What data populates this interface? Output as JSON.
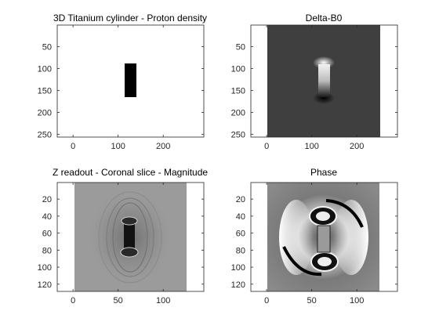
{
  "chart_data": [
    {
      "type": "heatmap",
      "title": "3D Titanium cylinder - Proton density",
      "xticks": [
        0,
        100,
        200
      ],
      "yticks": [
        50,
        100,
        150,
        200,
        250
      ],
      "xlim": [
        -35,
        290
      ],
      "ylim": [
        0.5,
        256.5
      ],
      "image_extent": {
        "x": [
          -35,
          290
        ],
        "y": [
          0.5,
          256.5
        ]
      },
      "image_fill": "#ffffff",
      "features": [
        {
          "kind": "rectangle",
          "color": "#000000",
          "x": [
            116,
            142
          ],
          "y": [
            89,
            164
          ]
        }
      ],
      "grid": false
    },
    {
      "type": "heatmap",
      "title": "Delta-B0",
      "xticks": [
        0,
        100,
        200
      ],
      "yticks": [
        50,
        100,
        150,
        200,
        250
      ],
      "xlim": [
        -35,
        290
      ],
      "ylim": [
        0.5,
        256.5
      ],
      "image_extent": {
        "x": [
          0.5,
          256.5
        ],
        "y": [
          0.5,
          256.5
        ]
      },
      "image_fill": "#3f3f3f",
      "features": [
        {
          "kind": "gradient-rectangle",
          "x": [
            116,
            142
          ],
          "y": [
            89,
            164
          ],
          "colors": [
            "#f2f2f2",
            "#bdbdbd",
            "#1a1a1a"
          ]
        },
        {
          "kind": "glow",
          "color": "#ffffff",
          "x": 129,
          "y": 86
        },
        {
          "kind": "glow",
          "color": "#000000",
          "x": 129,
          "y": 166
        }
      ],
      "grid": false
    },
    {
      "type": "heatmap",
      "title": "Z readout - Coronal slice - Magnitude",
      "xticks": [
        0,
        50,
        100
      ],
      "yticks": [
        20,
        40,
        60,
        80,
        100,
        120
      ],
      "xlim": [
        -17.5,
        145
      ],
      "ylim": [
        0.5,
        128.5
      ],
      "image_extent": {
        "x": [
          0.5,
          128.5
        ],
        "y": [
          0.5,
          128.5
        ]
      },
      "image_fill": "#9b9b9b",
      "features": [
        {
          "kind": "rectangle",
          "color": "#121212",
          "x": [
            58,
            72
          ],
          "y": [
            45,
            88
          ]
        },
        {
          "kind": "ringing",
          "color": "#6a6a6a",
          "x": 65,
          "y": 66
        }
      ],
      "grid": false
    },
    {
      "type": "heatmap",
      "title": "Phase",
      "xticks": [
        0,
        50,
        100
      ],
      "yticks": [
        20,
        40,
        60,
        80,
        100,
        120
      ],
      "xlim": [
        -17.5,
        145
      ],
      "ylim": [
        0.5,
        128.5
      ],
      "image_extent": {
        "x": [
          0.5,
          128.5
        ],
        "y": [
          0.5,
          128.5
        ]
      },
      "image_fill": "#7f7f7f",
      "features": [
        {
          "kind": "wrap-lobes",
          "colors": [
            "#ffffff",
            "#000000"
          ],
          "x": 65,
          "y": 66
        }
      ],
      "grid": false
    }
  ]
}
